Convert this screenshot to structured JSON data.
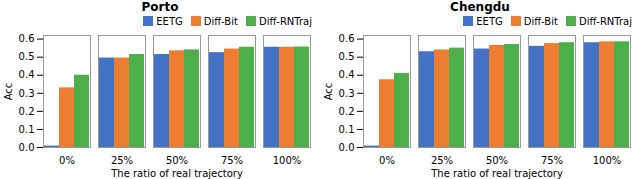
{
  "chart_data": [
    {
      "type": "bar",
      "title": "Porto",
      "categories": [
        "0%",
        "25%",
        "50%",
        "75%",
        "100%"
      ],
      "series": [
        {
          "name": "EETG",
          "color": "#4472C4",
          "values": [
            0.008,
            0.495,
            0.515,
            0.525,
            0.555
          ]
        },
        {
          "name": "Diff-Bit",
          "color": "#ED7D31",
          "values": [
            0.33,
            0.495,
            0.535,
            0.545,
            0.555
          ]
        },
        {
          "name": "Diff-RNTraj",
          "color": "#4DAF4A",
          "values": [
            0.4,
            0.515,
            0.54,
            0.555,
            0.556
          ]
        }
      ],
      "xlabel": "The ratio of real trajectory",
      "ylabel": "Acc",
      "ylim": [
        0,
        0.62
      ],
      "yticks": [
        {
          "value": 0.0,
          "label": "0.0"
        },
        0.1,
        0.2,
        0.3,
        0.4,
        0.5,
        0.6
      ],
      "grid": false,
      "legend": "right"
    },
    {
      "type": "bar",
      "title": "Chengdu",
      "categories": [
        "0%",
        "25%",
        "50%",
        "75%",
        "100%"
      ],
      "series": [
        {
          "name": "EETG",
          "color": "#4472C4",
          "values": [
            0.008,
            0.53,
            0.545,
            0.56,
            0.58
          ]
        },
        {
          "name": "Diff-Bit",
          "color": "#ED7D31",
          "values": [
            0.375,
            0.54,
            0.565,
            0.575,
            0.585
          ]
        },
        {
          "name": "Diff-RNTraj",
          "color": "#4DAF4A",
          "values": [
            0.41,
            0.55,
            0.57,
            0.58,
            0.585
          ]
        }
      ],
      "xlabel": "The ratio of real trajectory",
      "ylabel": "Acc",
      "ylim": [
        0,
        0.62
      ],
      "yticks": [
        {
          "value": 0.0,
          "label": "0.0"
        },
        0.1,
        0.2,
        0.3,
        0.4,
        0.5,
        0.6
      ],
      "grid": false,
      "legend": "right"
    }
  ]
}
